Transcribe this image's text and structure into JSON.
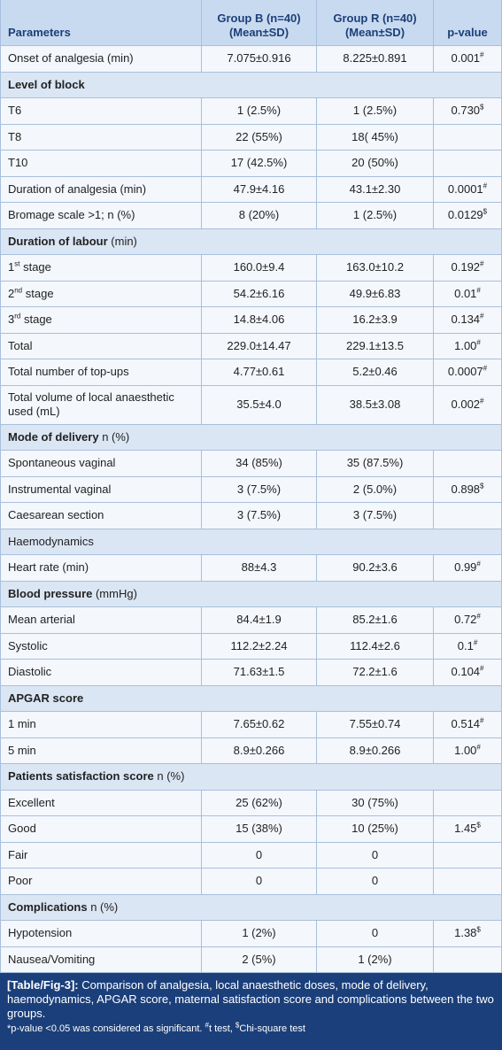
{
  "table": {
    "header": [
      [
        "Parameters"
      ],
      [
        "Group B (n=40)",
        "(Mean±SD)"
      ],
      [
        "Group R (n=40)",
        "(Mean±SD)"
      ],
      [
        "p-value"
      ]
    ],
    "rows": [
      {
        "cells": [
          [
            "Onset of analgesia (min)"
          ],
          [
            "7.075±0.916"
          ],
          [
            "8.225±0.891"
          ],
          [
            "0.001",
            {
              "sup": "#"
            }
          ]
        ]
      },
      {
        "section": [
          {
            "b": "Level of block"
          }
        ]
      },
      {
        "cells": [
          [
            "T6"
          ],
          [
            "1 (2.5%)"
          ],
          [
            "1 (2.5%)"
          ],
          [
            "0.730",
            {
              "sup": "$"
            }
          ]
        ]
      },
      {
        "cells": [
          [
            "T8"
          ],
          [
            "22 (55%)"
          ],
          [
            "18( 45%)"
          ],
          []
        ]
      },
      {
        "cells": [
          [
            "T10"
          ],
          [
            "17 (42.5%)"
          ],
          [
            "20 (50%)"
          ],
          []
        ]
      },
      {
        "cells": [
          [
            "Duration of analgesia (min)"
          ],
          [
            "47.9±4.16"
          ],
          [
            "43.1±2.30"
          ],
          [
            "0.0001",
            {
              "sup": "#"
            }
          ]
        ]
      },
      {
        "cells": [
          [
            "Bromage scale >1; n (%)"
          ],
          [
            "8 (20%)"
          ],
          [
            "1 (2.5%)"
          ],
          [
            "0.0129",
            {
              "sup": "$"
            }
          ]
        ]
      },
      {
        "section": [
          {
            "b": "Duration of labour"
          },
          " (min)"
        ]
      },
      {
        "cells": [
          [
            "1",
            {
              "sup": "st"
            },
            " stage"
          ],
          [
            "160.0±9.4"
          ],
          [
            "163.0±10.2"
          ],
          [
            "0.192",
            {
              "sup": "#"
            }
          ]
        ]
      },
      {
        "cells": [
          [
            "2",
            {
              "sup": "nd"
            },
            " stage"
          ],
          [
            "54.2±6.16"
          ],
          [
            "49.9±6.83"
          ],
          [
            "0.01",
            {
              "sup": "#"
            }
          ]
        ]
      },
      {
        "cells": [
          [
            "3",
            {
              "sup": "rd"
            },
            " stage"
          ],
          [
            "14.8±4.06"
          ],
          [
            "16.2±3.9"
          ],
          [
            "0.134",
            {
              "sup": "#"
            }
          ]
        ]
      },
      {
        "cells": [
          [
            "Total"
          ],
          [
            "229.0±14.47"
          ],
          [
            "229.1±13.5"
          ],
          [
            "1.00",
            {
              "sup": "#"
            }
          ]
        ]
      },
      {
        "cells": [
          [
            "Total number of top-ups"
          ],
          [
            "4.77±0.61"
          ],
          [
            "5.2±0.46"
          ],
          [
            "0.0007",
            {
              "sup": "#"
            }
          ]
        ]
      },
      {
        "cells": [
          [
            "Total volume of local anaesthetic used (mL)"
          ],
          [
            "35.5±4.0"
          ],
          [
            "38.5±3.08"
          ],
          [
            "0.002",
            {
              "sup": "#"
            }
          ]
        ]
      },
      {
        "section": [
          {
            "b": "Mode of delivery"
          },
          " n (%)"
        ]
      },
      {
        "cells": [
          [
            "Spontaneous vaginal"
          ],
          [
            "34 (85%)"
          ],
          [
            "35 (87.5%)"
          ],
          []
        ]
      },
      {
        "cells": [
          [
            "Instrumental vaginal"
          ],
          [
            "3 (7.5%)"
          ],
          [
            "2 (5.0%)"
          ],
          [
            "0.898",
            {
              "sup": "$"
            }
          ]
        ]
      },
      {
        "cells": [
          [
            "Caesarean section"
          ],
          [
            "3 (7.5%)"
          ],
          [
            "3 (7.5%)"
          ],
          []
        ]
      },
      {
        "section": [
          "Haemodynamics"
        ]
      },
      {
        "cells": [
          [
            "Heart rate (min)"
          ],
          [
            "88±4.3"
          ],
          [
            "90.2±3.6"
          ],
          [
            "0.99",
            {
              "sup": "#"
            }
          ]
        ]
      },
      {
        "section": [
          {
            "b": "Blood pressure"
          },
          " (mmHg)"
        ]
      },
      {
        "cells": [
          [
            "Mean arterial"
          ],
          [
            "84.4±1.9"
          ],
          [
            "85.2±1.6"
          ],
          [
            "0.72",
            {
              "sup": "#"
            }
          ]
        ]
      },
      {
        "cells": [
          [
            "Systolic"
          ],
          [
            "112.2±2.24"
          ],
          [
            "112.4±2.6"
          ],
          [
            "0.1",
            {
              "sup": "#"
            }
          ]
        ]
      },
      {
        "cells": [
          [
            "Diastolic"
          ],
          [
            "71.63±1.5"
          ],
          [
            "72.2±1.6"
          ],
          [
            "0.104",
            {
              "sup": "#"
            }
          ]
        ]
      },
      {
        "section": [
          {
            "b": "APGAR score"
          }
        ]
      },
      {
        "cells": [
          [
            "1 min"
          ],
          [
            "7.65±0.62"
          ],
          [
            "7.55±0.74"
          ],
          [
            "0.514",
            {
              "sup": "#"
            }
          ]
        ]
      },
      {
        "cells": [
          [
            "5 min"
          ],
          [
            "8.9±0.266"
          ],
          [
            "8.9±0.266"
          ],
          [
            "1.00",
            {
              "sup": "#"
            }
          ]
        ]
      },
      {
        "section": [
          {
            "b": "Patients satisfaction score"
          },
          " n (%)"
        ]
      },
      {
        "cells": [
          [
            "Excellent"
          ],
          [
            "25 (62%)"
          ],
          [
            "30 (75%)"
          ],
          []
        ]
      },
      {
        "cells": [
          [
            "Good"
          ],
          [
            "15 (38%)"
          ],
          [
            "10 (25%)"
          ],
          [
            "1.45",
            {
              "sup": "$"
            }
          ]
        ]
      },
      {
        "cells": [
          [
            "Fair"
          ],
          [
            "0"
          ],
          [
            "0"
          ],
          []
        ]
      },
      {
        "cells": [
          [
            "Poor"
          ],
          [
            "0"
          ],
          [
            "0"
          ],
          []
        ]
      },
      {
        "section": [
          {
            "b": "Complications"
          },
          " n (%)"
        ]
      },
      {
        "cells": [
          [
            "Hypotension"
          ],
          [
            "1 (2%)"
          ],
          [
            "0"
          ],
          [
            "1.38",
            {
              "sup": "$"
            }
          ]
        ]
      },
      {
        "cells": [
          [
            "Nausea/Vomiting"
          ],
          [
            "2 (5%)"
          ],
          [
            "1 (2%)"
          ],
          []
        ]
      }
    ]
  },
  "caption": {
    "label": "[Table/Fig-3]:",
    "text": "Comparison of analgesia, local anaesthetic doses, mode of delivery, haemodynamics, APGAR score, maternal satisfaction score and complications between the two groups.",
    "note": [
      "*p-value <0.05 was considered as significant. ",
      {
        "sup": "#"
      },
      "t test, ",
      {
        "sup": "$"
      },
      "Chi-square test"
    ]
  }
}
